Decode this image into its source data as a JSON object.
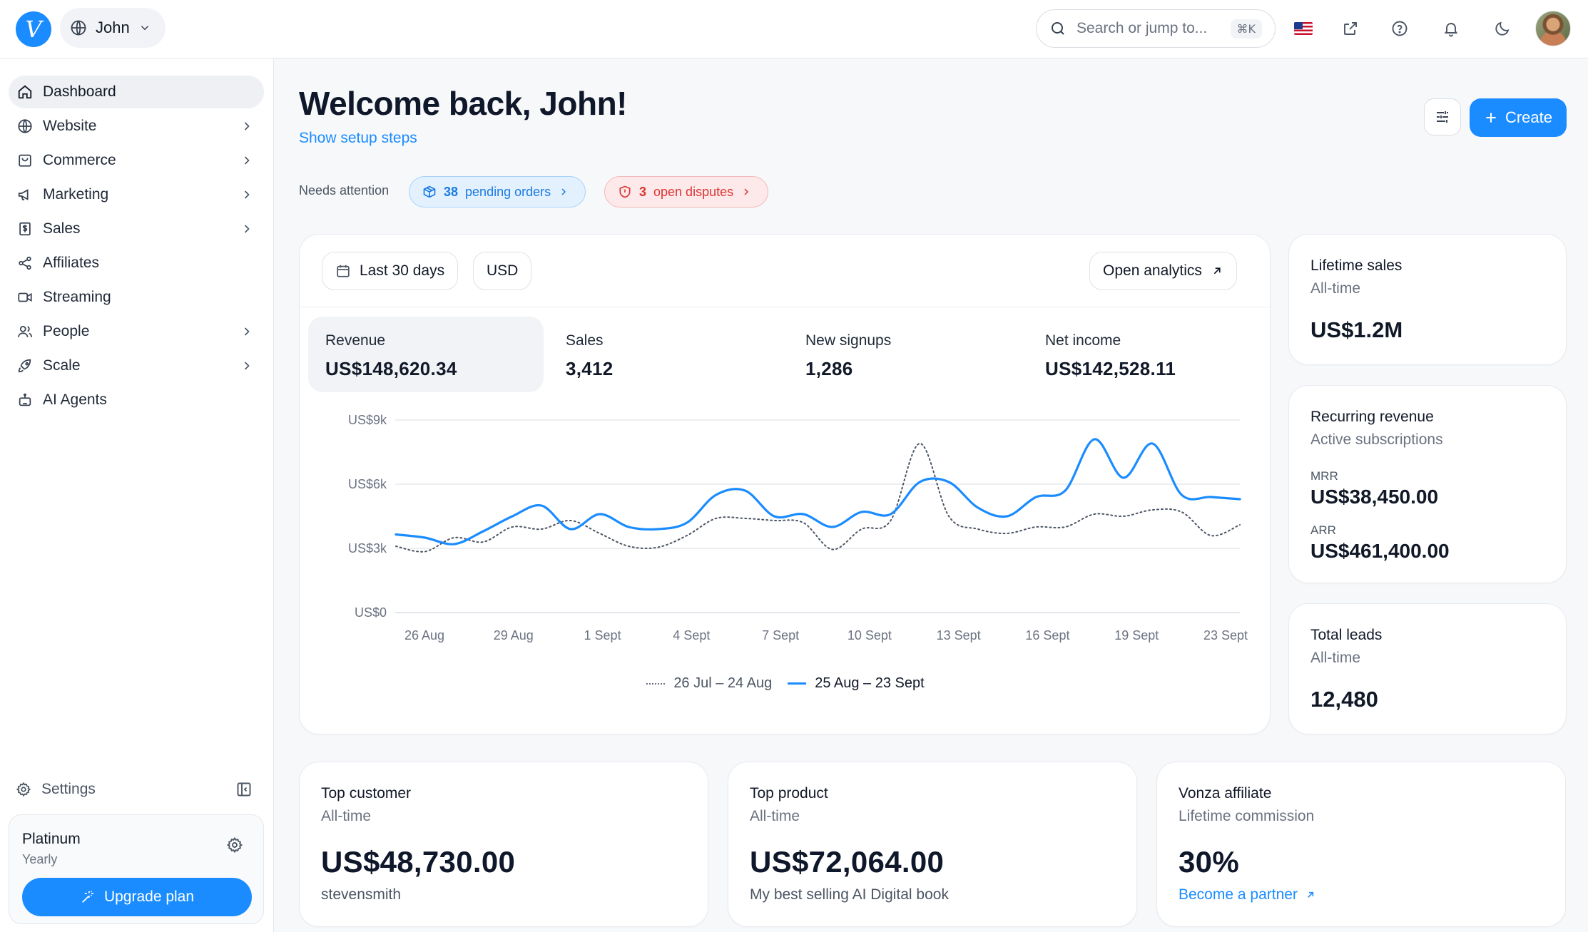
{
  "topbar": {
    "logo_letter": "V",
    "workspace_name": "John",
    "search_placeholder": "Search or jump to...",
    "search_shortcut": "⌘K",
    "icons": [
      "us-flag-icon",
      "external-link-icon",
      "help-icon",
      "bell-icon",
      "moon-icon"
    ]
  },
  "sidebar": {
    "items": [
      {
        "label": "Dashboard",
        "icon": "home-icon",
        "active": true,
        "has_children": false
      },
      {
        "label": "Website",
        "icon": "globe-icon",
        "has_children": true
      },
      {
        "label": "Commerce",
        "icon": "shopping-bag-icon",
        "has_children": true
      },
      {
        "label": "Marketing",
        "icon": "megaphone-icon",
        "has_children": true
      },
      {
        "label": "Sales",
        "icon": "dollar-receipt-icon",
        "has_children": true
      },
      {
        "label": "Affiliates",
        "icon": "share-nodes-icon",
        "has_children": false
      },
      {
        "label": "Streaming",
        "icon": "video-camera-icon",
        "has_children": false
      },
      {
        "label": "People",
        "icon": "users-icon",
        "has_children": true
      },
      {
        "label": "Scale",
        "icon": "rocket-icon",
        "has_children": true
      },
      {
        "label": "AI Agents",
        "icon": "robot-icon",
        "has_children": false
      }
    ],
    "settings_label": "Settings",
    "plan": {
      "name": "Platinum",
      "cycle": "Yearly",
      "upgrade_label": "Upgrade plan"
    }
  },
  "header": {
    "title": "Welcome back, John!",
    "setup_link": "Show setup steps",
    "create_label": "Create",
    "attention_label": "Needs attention",
    "pending_count": "38",
    "pending_text": "pending orders",
    "disputes_count": "3",
    "disputes_text": "open disputes"
  },
  "analytics": {
    "range_label": "Last 30 days",
    "currency_label": "USD",
    "open_label": "Open analytics",
    "metrics": [
      {
        "label": "Revenue",
        "value": "US$148,620.34",
        "active": true
      },
      {
        "label": "Sales",
        "value": "3,412"
      },
      {
        "label": "New signups",
        "value": "1,286"
      },
      {
        "label": "Net income",
        "value": "US$142,528.11"
      }
    ]
  },
  "chart_data": {
    "type": "line",
    "title": "",
    "xlabel": "",
    "ylabel": "",
    "ylim": [
      0,
      9000
    ],
    "y_ticks": [
      0,
      3000,
      6000,
      9000
    ],
    "y_tick_labels": [
      "US$0",
      "US$3k",
      "US$6k",
      "US$9k"
    ],
    "x_tick_labels": [
      "26 Aug",
      "29 Aug",
      "1 Sept",
      "4 Sept",
      "7 Sept",
      "10 Sept",
      "13 Sept",
      "16 Sept",
      "19 Sept",
      "23 Sept"
    ],
    "grid": true,
    "legend_position": "bottom-center",
    "series": [
      {
        "name": "26 Jul – 24 Aug",
        "style": "dotted",
        "color": "#4b5563",
        "values": [
          3100,
          2850,
          3500,
          3300,
          4000,
          3900,
          4300,
          3700,
          3100,
          3050,
          3600,
          4400,
          4400,
          4300,
          4200,
          2950,
          3900,
          4300,
          7900,
          4500,
          3900,
          3700,
          4000,
          4000,
          4600,
          4500,
          4800,
          4700,
          3600,
          4100
        ]
      },
      {
        "name": "25 Aug – 23 Sept",
        "style": "solid",
        "color": "#1a8cff",
        "values": [
          3650,
          3500,
          3200,
          3800,
          4500,
          5000,
          3900,
          4600,
          4000,
          3900,
          4200,
          5500,
          5700,
          4500,
          4600,
          4000,
          4700,
          4600,
          6100,
          6100,
          4900,
          4500,
          5400,
          5700,
          8100,
          6300,
          7900,
          5500,
          5400,
          5300
        ]
      }
    ]
  },
  "side_cards": {
    "lifetime": {
      "title": "Lifetime sales",
      "sub": "All-time",
      "value": "US$1.2M"
    },
    "recurring": {
      "title": "Recurring revenue",
      "sub": "Active subscriptions",
      "mrr_label": "MRR",
      "mrr_value": "US$38,450.00",
      "arr_label": "ARR",
      "arr_value": "US$461,400.00"
    },
    "leads": {
      "title": "Total leads",
      "sub": "All-time",
      "value": "12,480"
    }
  },
  "bottom_cards": {
    "customer": {
      "title": "Top customer",
      "sub": "All-time",
      "value": "US$48,730.00",
      "foot": "stevensmith"
    },
    "product": {
      "title": "Top product",
      "sub": "All-time",
      "value": "US$72,064.00",
      "foot": "My best selling AI Digital book"
    },
    "affiliate": {
      "title": "Vonza affiliate",
      "sub": "Lifetime commission",
      "value": "30%",
      "link": "Become a partner"
    }
  }
}
